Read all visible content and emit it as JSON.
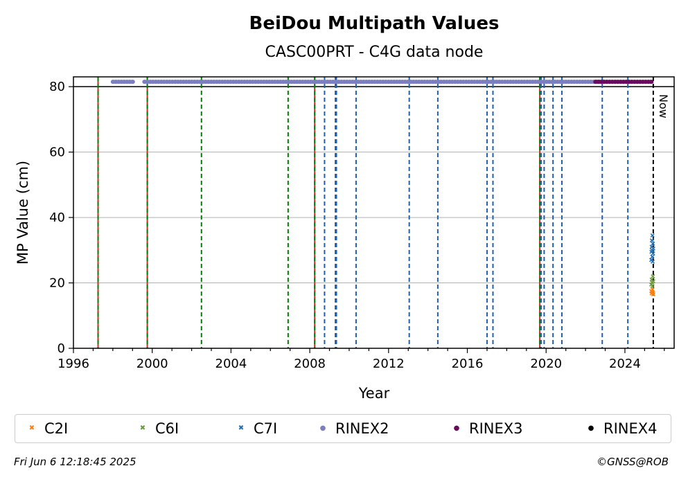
{
  "chart_data": {
    "type": "scatter",
    "title": "BeiDou Multipath Values",
    "subtitle": "CASC00PRT - C4G data node",
    "xlabel": "Year",
    "ylabel": "MP Value (cm)",
    "xlim": [
      1996,
      2026.5
    ],
    "ylim": [
      0,
      83
    ],
    "xticks": [
      1996,
      2000,
      2004,
      2008,
      2012,
      2016,
      2020,
      2024
    ],
    "yticks": [
      0,
      20,
      40,
      60,
      80
    ],
    "grid": "y",
    "legend": "bottom",
    "now_label": "Now",
    "now_x": 2025.44,
    "reference_y": 80,
    "series": [
      {
        "name": "C2I",
        "marker": "x",
        "color": "#ff7f0e",
        "x": [
          2025.34,
          2025.36,
          2025.38,
          2025.4,
          2025.42,
          2025.44
        ],
        "y": [
          17.5,
          16.8,
          17.2,
          18.0,
          17.0,
          16.5
        ]
      },
      {
        "name": "C6I",
        "marker": "x",
        "color": "#6a9a3a",
        "x": [
          2025.34,
          2025.36,
          2025.38,
          2025.4,
          2025.42,
          2025.44
        ],
        "y": [
          19.5,
          21.0,
          20.2,
          19.0,
          22.0,
          20.5
        ]
      },
      {
        "name": "C7I",
        "marker": "x",
        "color": "#2271b5",
        "x": [
          2025.34,
          2025.35,
          2025.36,
          2025.37,
          2025.38,
          2025.39,
          2025.4,
          2025.41,
          2025.42,
          2025.43,
          2025.44
        ],
        "y": [
          27.0,
          29.5,
          31.0,
          33.0,
          30.0,
          28.0,
          34.5,
          26.5,
          32.0,
          29.0,
          30.5
        ]
      },
      {
        "name": "RINEX2",
        "marker": "dot",
        "color": "#7b7fc2",
        "ranges": [
          [
            1998.0,
            1999.1
          ],
          [
            1999.6,
            2022.8
          ]
        ],
        "y": 81.5
      },
      {
        "name": "RINEX3",
        "marker": "dot",
        "color": "#6a0a5e",
        "ranges": [
          [
            2022.5,
            2025.44
          ]
        ],
        "y": 81.5
      },
      {
        "name": "RINEX4",
        "marker": "dot",
        "color": "#000000",
        "ranges": [],
        "y": 81.5
      }
    ],
    "event_lines": {
      "red_solid": [
        1997.25,
        1999.75,
        2008.25,
        2019.68
      ],
      "green_dashed": [
        1997.25,
        1999.75,
        2002.5,
        2006.9,
        2008.25,
        2019.68
      ],
      "blue_dashed": [
        2008.75,
        2009.3,
        2009.35,
        2010.35,
        2013.05,
        2014.5,
        2017.0,
        2017.3,
        2019.75,
        2019.9,
        2020.35,
        2020.8,
        2022.85,
        2024.15
      ]
    },
    "colors": {
      "red": "#d62728",
      "green": "#008000",
      "blue": "#1f5fb0",
      "grid": "#b0b0b0"
    }
  },
  "footer": {
    "timestamp": "Fri Jun  6 12:18:45 2025",
    "credit": "©GNSS@ROB"
  }
}
